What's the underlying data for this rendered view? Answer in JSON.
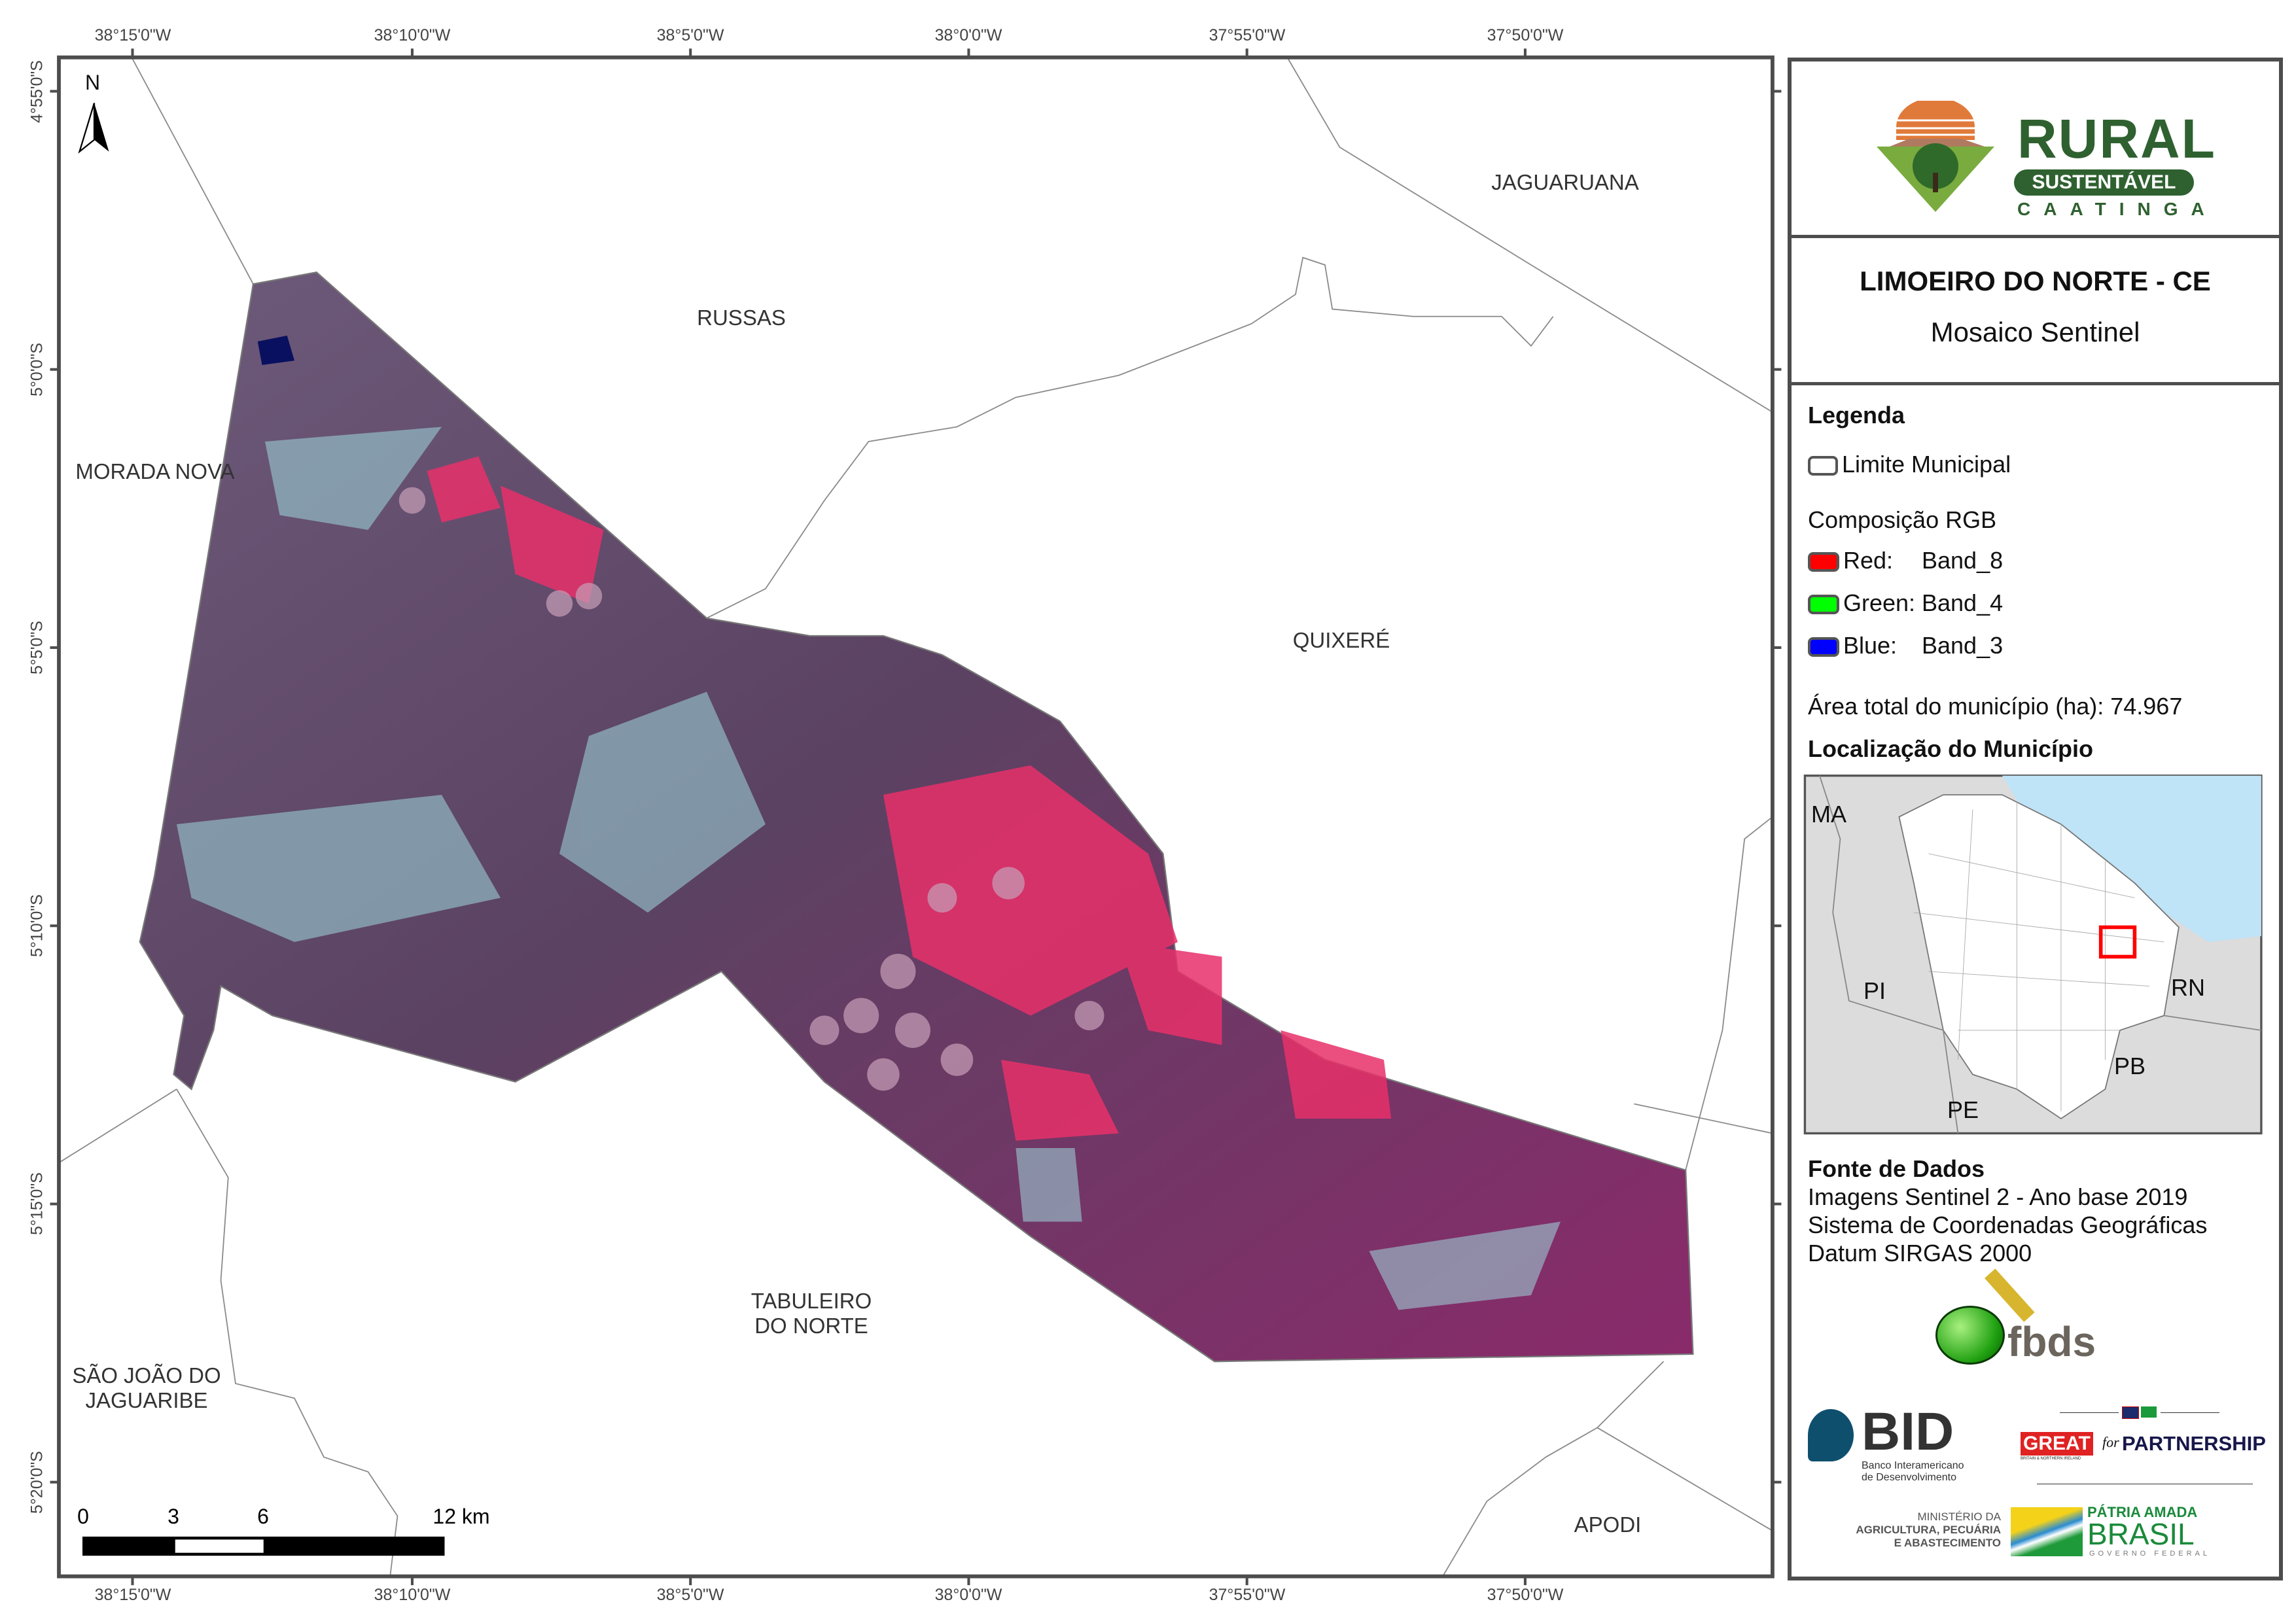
{
  "map": {
    "north_arrow_label": "N",
    "x_ticks": [
      "38°15'0\"W",
      "38°10'0\"W",
      "38°5'0\"W",
      "38°0'0\"W",
      "37°55'0\"W",
      "37°50'0\"W"
    ],
    "y_ticks": [
      "4°55'0\"S",
      "5°0'0\"S",
      "5°5'0\"S",
      "5°10'0\"S",
      "5°15'0\"S",
      "5°20'0\"S"
    ],
    "places": {
      "jaguaruana": "JAGUARUANA",
      "russas": "RUSSAS",
      "morada_nova": "MORADA NOVA",
      "quixere": "QUIXERÉ",
      "tabuleiro_1": "TABULEIRO",
      "tabuleiro_2": "DO NORTE",
      "sao_joao_1": "SÃO JOÃO DO",
      "sao_joao_2": "JAGUARIBE",
      "apodi": "APODI"
    },
    "scale_bar": {
      "labels": [
        "0",
        "3",
        "6",
        "12 km"
      ]
    }
  },
  "panel": {
    "logo": {
      "rural": "RURAL",
      "sustentavel": "SUSTENTÁVEL",
      "caatinga": "CAATINGA"
    },
    "title": "LIMOEIRO DO NORTE - CE",
    "subtitle": "Mosaico Sentinel",
    "legend": {
      "heading": "Legenda",
      "limite": "Limite Municipal",
      "rgb_heading": "Composição RGB",
      "bands": [
        {
          "label": "Red:",
          "band": "Band_8",
          "color": "#ff0000"
        },
        {
          "label": "Green:",
          "band": "Band_4",
          "color": "#00ff00"
        },
        {
          "label": "Blue:",
          "band": "Band_3",
          "color": "#0000ff"
        }
      ],
      "area": "Área total do município (ha): 74.967",
      "location_heading": "Localização do Município"
    },
    "inset": {
      "ma": "MA",
      "pi": "PI",
      "rn": "RN",
      "pb": "PB",
      "pe": "PE"
    },
    "sources": {
      "heading": "Fonte de Dados",
      "lines": [
        "Imagens Sentinel 2 - Ano base 2019",
        "Sistema de Coordenadas Geográficas",
        "Datum SIRGAS 2000"
      ]
    },
    "logos": {
      "fbds": "fbds",
      "bid": "BID",
      "bid_sub1": "Banco Interamericano",
      "bid_sub2": "de Desenvolvimento",
      "great": "GREAT",
      "great_sub": "BRITAIN & NORTHERN IRELAND",
      "for": "for",
      "partnership": "PARTNERSHIP",
      "ministerio1": "MINISTÉRIO DA",
      "ministerio2": "AGRICULTURA, PECUÁRIA",
      "ministerio3": "E ABASTECIMENTO",
      "patria": "PÁTRIA AMADA",
      "brasil": "BRASIL",
      "governo": "GOVERNO FEDERAL"
    }
  }
}
